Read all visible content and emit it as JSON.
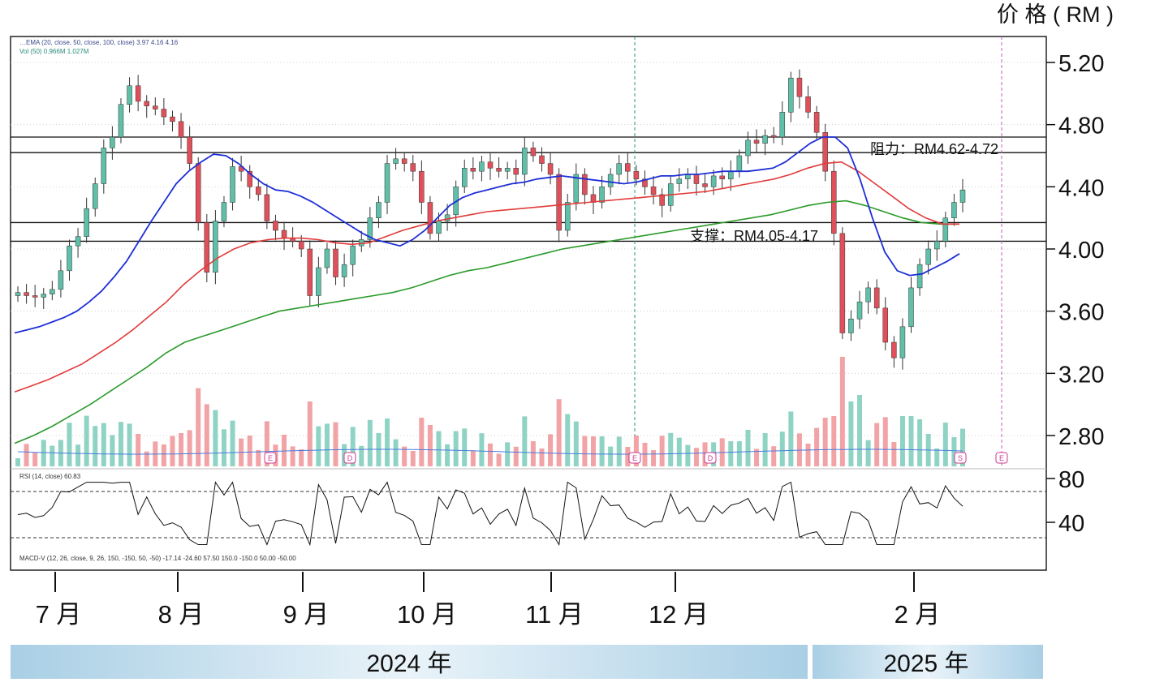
{
  "header": {
    "price_unit_label": "价 格 ( RM )"
  },
  "legend_top": {
    "line1": "…EMA (20, close, 50, close, 100, close)  3.97  4.16  4.16",
    "line2": "Vol (50)  0.966M  1.027M"
  },
  "rsi_legend": "RSI (14, close)  60.83",
  "macd_legend": "MACD-V (12, 26, close, 9, 26, 150, -150, 50, -50)  -17.14  -24.60  57.50  150.0  -150.0  50.00  -50.00",
  "annotations": {
    "resistance": "阻力：RM4.62-4.72",
    "support": "支撑：RM4.05-4.17"
  },
  "price_ticks": [
    "5.20",
    "4.80",
    "4.40",
    "4.00",
    "3.60",
    "3.20",
    "2.80"
  ],
  "rsi_ticks": [
    "80",
    "40"
  ],
  "months": [
    "7 月",
    "8 月",
    "9 月",
    "10 月",
    "11 月",
    "12 月",
    "2 月"
  ],
  "years": [
    "2024 年",
    "2025 年"
  ],
  "event_markers": [
    "E",
    "D",
    "D",
    "E",
    "D",
    "S",
    "E"
  ],
  "colors": {
    "up": "#5fbfa8",
    "down": "#e0505a",
    "ema20": "#1f2fd6",
    "ema50": "#e23a3a",
    "ema100": "#2a9a2a",
    "vol_up": "#8fd3c4",
    "vol_down": "#f1a3a6",
    "vol_ma": "#4a7be0",
    "event_marker": "#cf3a8f",
    "cursor_line": "#2a9a6a",
    "future_line": "#c45bc9",
    "year_band": "#a9cfe5"
  },
  "chart_data": {
    "type": "candlestick",
    "title": "",
    "ylabel": "价 格 ( RM )",
    "ylim": [
      2.55,
      5.38
    ],
    "x_ticks": [
      "7 月",
      "8 月",
      "9 月",
      "10 月",
      "11 月",
      "12 月",
      "2 月"
    ],
    "resistance_range": [
      4.62,
      4.72
    ],
    "support_range": [
      4.05,
      4.17
    ],
    "ema_last": {
      "ema20": 3.97,
      "ema50": 4.16,
      "ema100": 4.16
    },
    "rsi_last": 60.83,
    "rsi_ylim": [
      20,
      100
    ],
    "rsi_levels": [
      70,
      30
    ],
    "series": [
      {
        "name": "Close",
        "values": [
          3.72,
          3.7,
          3.69,
          3.71,
          3.74,
          3.86,
          4.02,
          4.08,
          4.26,
          4.42,
          4.65,
          4.72,
          4.93,
          5.05,
          4.95,
          4.92,
          4.9,
          4.85,
          4.82,
          4.72,
          4.55,
          4.17,
          3.85,
          4.18,
          4.3,
          4.53,
          4.5,
          4.4,
          4.35,
          4.18,
          4.12,
          4.07,
          4.05,
          4.0,
          3.7,
          3.88,
          4.0,
          3.82,
          3.9,
          4.02,
          4.06,
          4.2,
          4.3,
          4.55,
          4.58,
          4.55,
          4.5,
          4.3,
          4.1,
          4.18,
          4.22,
          4.4,
          4.52,
          4.5,
          4.56,
          4.52,
          4.5,
          4.52,
          4.48,
          4.65,
          4.6,
          4.55,
          4.48,
          4.12,
          4.3,
          4.48,
          4.35,
          4.3,
          4.4,
          4.48,
          4.55,
          4.5,
          4.45,
          4.4,
          4.35,
          4.28,
          4.42,
          4.45,
          4.48,
          4.42,
          4.4,
          4.47,
          4.45,
          4.5,
          4.6,
          4.7,
          4.68,
          4.73,
          4.72,
          4.88,
          5.1,
          4.98,
          4.88,
          4.75,
          4.5,
          4.1,
          3.46,
          3.55,
          3.66,
          3.75,
          3.62,
          3.4,
          3.3,
          3.5,
          3.75,
          3.9,
          4.0,
          4.05,
          4.2,
          4.3,
          4.38
        ]
      },
      {
        "name": "EMA 20",
        "values": [
          3.46,
          3.48,
          3.5,
          3.53,
          3.56,
          3.6,
          3.66,
          3.73,
          3.82,
          3.92,
          4.05,
          4.18,
          4.3,
          4.42,
          4.5,
          4.56,
          4.61,
          4.6,
          4.55,
          4.48,
          4.42,
          4.38,
          4.37,
          4.34,
          4.3,
          4.25,
          4.2,
          4.15,
          4.1,
          4.06,
          4.04,
          4.02,
          4.06,
          4.12,
          4.2,
          4.28,
          4.33,
          4.36,
          4.38,
          4.4,
          4.42,
          4.43,
          4.45,
          4.46,
          4.47,
          4.46,
          4.45,
          4.44,
          4.43,
          4.42,
          4.43,
          4.45,
          4.47,
          4.47,
          4.48,
          4.48,
          4.49,
          4.5,
          4.5,
          4.5,
          4.51,
          4.52,
          4.56,
          4.62,
          4.68,
          4.72,
          4.72,
          4.65,
          4.45,
          4.2,
          3.98,
          3.86,
          3.83,
          3.84,
          3.88,
          3.92,
          3.97
        ]
      },
      {
        "name": "EMA 50",
        "values": [
          3.08,
          3.12,
          3.16,
          3.21,
          3.26,
          3.33,
          3.4,
          3.48,
          3.57,
          3.66,
          3.77,
          3.86,
          3.94,
          4.0,
          4.04,
          4.06,
          4.07,
          4.07,
          4.06,
          4.04,
          4.03,
          4.04,
          4.08,
          4.12,
          4.15,
          4.18,
          4.2,
          4.22,
          4.24,
          4.25,
          4.26,
          4.27,
          4.28,
          4.29,
          4.3,
          4.31,
          4.32,
          4.33,
          4.34,
          4.35,
          4.36,
          4.37,
          4.39,
          4.41,
          4.43,
          4.45,
          4.48,
          4.52,
          4.55,
          4.56,
          4.5,
          4.42,
          4.34,
          4.26,
          4.2,
          4.16,
          4.16
        ]
      },
      {
        "name": "EMA 100",
        "values": [
          2.75,
          2.8,
          2.86,
          2.93,
          3.0,
          3.08,
          3.16,
          3.24,
          3.33,
          3.4,
          3.44,
          3.48,
          3.52,
          3.56,
          3.6,
          3.62,
          3.64,
          3.66,
          3.68,
          3.7,
          3.72,
          3.75,
          3.79,
          3.83,
          3.86,
          3.88,
          3.91,
          3.94,
          3.97,
          4.0,
          4.02,
          4.04,
          4.06,
          4.08,
          4.1,
          4.12,
          4.14,
          4.16,
          4.18,
          4.2,
          4.22,
          4.25,
          4.28,
          4.3,
          4.31,
          4.28,
          4.24,
          4.2,
          4.17,
          4.16,
          4.16
        ]
      }
    ]
  }
}
